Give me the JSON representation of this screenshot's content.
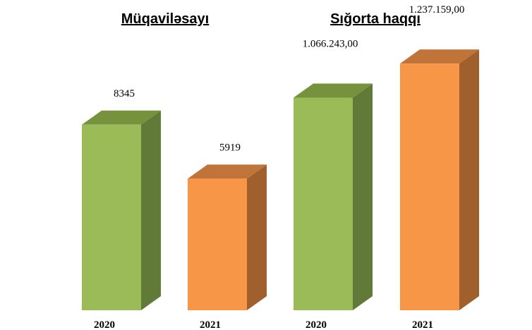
{
  "chart_data": [
    {
      "type": "bar",
      "title": "Müqaviləsayı",
      "categories": [
        "2020",
        "2021"
      ],
      "values": [
        8345,
        5919
      ],
      "value_labels": [
        "8345",
        "5919"
      ],
      "ylim": [
        0,
        13000
      ],
      "colors": [
        "#9BBB59",
        "#F79646"
      ]
    },
    {
      "type": "bar",
      "title": "Sığorta haqqı",
      "categories": [
        "2020",
        "2021"
      ],
      "values": [
        1066243.0,
        1237159.0
      ],
      "value_labels": [
        "1.066.243,00",
        "1.237.159,00"
      ],
      "ylim": [
        0,
        1450000
      ],
      "colors": [
        "#9BBB59",
        "#F79646"
      ]
    }
  ],
  "palette": {
    "green": {
      "front": "#9BBB59",
      "top": "#76923C",
      "side": "#617A37"
    },
    "orange": {
      "front": "#F79646",
      "top": "#C0743A",
      "side": "#A0602D"
    }
  }
}
